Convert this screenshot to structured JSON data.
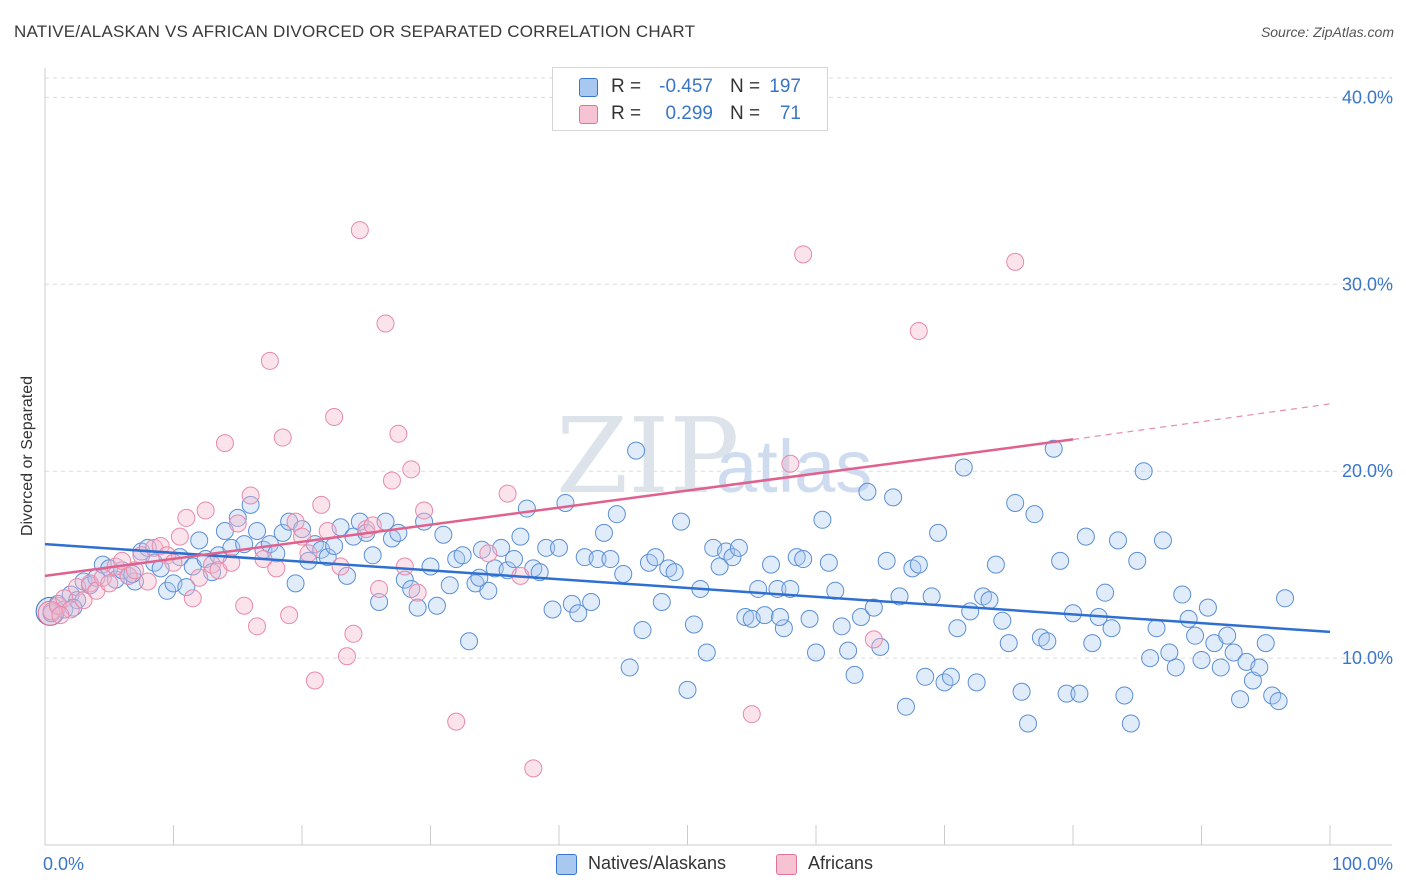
{
  "title": "NATIVE/ALASKAN VS AFRICAN DIVORCED OR SEPARATED CORRELATION CHART",
  "source": "Source: ZipAtlas.com",
  "watermark": {
    "zip": "ZIP",
    "atlas": "atlas"
  },
  "legend": {
    "rows": [
      {
        "r_label": "R =",
        "r_value": "-0.457",
        "n_label": "N =",
        "n_value": "197"
      },
      {
        "r_label": "R =",
        "r_value": "0.299",
        "n_label": "N =",
        "n_value": "71"
      }
    ]
  },
  "bottom_legend": {
    "natives": "Natives/Alaskans",
    "africans": "Africans"
  },
  "chart_data": {
    "type": "scatter",
    "title": "NATIVE/ALASKAN VS AFRICAN DIVORCED OR SEPARATED CORRELATION CHART",
    "xlabel": "",
    "ylabel": "Divorced or Separated",
    "xlim": [
      0,
      100
    ],
    "ylim": [
      0,
      42
    ],
    "x_tick_labels": [
      "0.0%",
      "100.0%"
    ],
    "y_ticks": [
      10,
      20,
      30,
      40
    ],
    "y_tick_labels": [
      "10.0%",
      "20.0%",
      "30.0%",
      "40.0%"
    ],
    "grid": true,
    "legend_position": "top-center",
    "colors": {
      "natives": "#3a76c8",
      "natives_fill": "#a9c8f0",
      "africans": "#e0739a",
      "africans_fill": "#f6b8cc"
    },
    "series": [
      {
        "name": "Natives/Alaskans",
        "r": -0.457,
        "n": 197,
        "trend": {
          "x": [
            0,
            100
          ],
          "y": [
            16.1,
            11.4
          ]
        },
        "points": [
          [
            0.5,
            12.4
          ],
          [
            1,
            12.9
          ],
          [
            1.5,
            12.6
          ],
          [
            2,
            13.4
          ],
          [
            2.5,
            13.1
          ],
          [
            3,
            14.1
          ],
          [
            3.5,
            13.9
          ],
          [
            4,
            14.3
          ],
          [
            4.5,
            15.0
          ],
          [
            5,
            14.8
          ],
          [
            5.5,
            14.2
          ],
          [
            6,
            14.7
          ],
          [
            6.5,
            14.4
          ],
          [
            7,
            14.1
          ],
          [
            7.5,
            15.7
          ],
          [
            8,
            15.9
          ],
          [
            8.5,
            15.1
          ],
          [
            9,
            14.8
          ],
          [
            9.5,
            13.6
          ],
          [
            10,
            14.0
          ],
          [
            10.5,
            15.4
          ],
          [
            11,
            13.8
          ],
          [
            11.5,
            14.9
          ],
          [
            12,
            16.3
          ],
          [
            12.5,
            15.3
          ],
          [
            13,
            14.6
          ],
          [
            13.5,
            15.5
          ],
          [
            14,
            16.8
          ],
          [
            14.5,
            15.9
          ],
          [
            15,
            17.5
          ],
          [
            15.5,
            16.1
          ],
          [
            16,
            18.2
          ],
          [
            16.5,
            16.8
          ],
          [
            17,
            15.8
          ],
          [
            17.5,
            16.1
          ],
          [
            18,
            15.6
          ],
          [
            18.5,
            16.7
          ],
          [
            19,
            17.3
          ],
          [
            19.5,
            14.0
          ],
          [
            20,
            16.9
          ],
          [
            20.5,
            15.2
          ],
          [
            21,
            16.1
          ],
          [
            21.5,
            15.8
          ],
          [
            22,
            15.4
          ],
          [
            22.5,
            16.0
          ],
          [
            23,
            17.0
          ],
          [
            23.5,
            14.4
          ],
          [
            24,
            16.5
          ],
          [
            24.5,
            17.3
          ],
          [
            25,
            16.7
          ],
          [
            25.5,
            15.5
          ],
          [
            26,
            13.0
          ],
          [
            26.5,
            17.3
          ],
          [
            27,
            16.4
          ],
          [
            27.5,
            16.7
          ],
          [
            28,
            14.2
          ],
          [
            28.5,
            13.7
          ],
          [
            29,
            12.7
          ],
          [
            29.5,
            17.3
          ],
          [
            30,
            14.9
          ],
          [
            30.5,
            12.8
          ],
          [
            31,
            16.6
          ],
          [
            31.5,
            13.9
          ],
          [
            32,
            15.3
          ],
          [
            32.5,
            15.5
          ],
          [
            33,
            10.9
          ],
          [
            33.5,
            14.0
          ],
          [
            34,
            15.8
          ],
          [
            34.5,
            13.6
          ],
          [
            35,
            14.8
          ],
          [
            35.5,
            15.9
          ],
          [
            36,
            14.7
          ],
          [
            36.5,
            15.3
          ],
          [
            37,
            16.5
          ],
          [
            37.5,
            18.0
          ],
          [
            38,
            14.8
          ],
          [
            38.5,
            14.6
          ],
          [
            39,
            15.9
          ],
          [
            39.5,
            12.6
          ],
          [
            40,
            15.9
          ],
          [
            40.5,
            18.3
          ],
          [
            41,
            12.9
          ],
          [
            41.5,
            12.4
          ],
          [
            42,
            15.4
          ],
          [
            42.5,
            13.0
          ],
          [
            43,
            15.3
          ],
          [
            43.5,
            16.7
          ],
          [
            44,
            15.3
          ],
          [
            44.5,
            17.7
          ],
          [
            45,
            14.5
          ],
          [
            45.5,
            9.5
          ],
          [
            46,
            21.1
          ],
          [
            46.5,
            11.5
          ],
          [
            47,
            15.1
          ],
          [
            47.5,
            15.4
          ],
          [
            48,
            13.0
          ],
          [
            48.5,
            14.8
          ],
          [
            49,
            14.6
          ],
          [
            49.5,
            17.3
          ],
          [
            50,
            8.3
          ],
          [
            50.5,
            11.8
          ],
          [
            51,
            13.7
          ],
          [
            51.5,
            10.3
          ],
          [
            52,
            15.9
          ],
          [
            52.5,
            14.9
          ],
          [
            53,
            15.7
          ],
          [
            53.5,
            15.4
          ],
          [
            54,
            15.9
          ],
          [
            54.5,
            12.2
          ],
          [
            55,
            12.1
          ],
          [
            55.5,
            13.7
          ],
          [
            56,
            12.3
          ],
          [
            56.5,
            15.0
          ],
          [
            57,
            13.7
          ],
          [
            57.5,
            11.6
          ],
          [
            58,
            13.7
          ],
          [
            58.5,
            15.4
          ],
          [
            59,
            15.3
          ],
          [
            59.5,
            12.1
          ],
          [
            60,
            10.3
          ],
          [
            60.5,
            17.4
          ],
          [
            61,
            15.1
          ],
          [
            61.5,
            13.6
          ],
          [
            62,
            11.7
          ],
          [
            62.5,
            10.4
          ],
          [
            63,
            9.1
          ],
          [
            63.5,
            12.2
          ],
          [
            64,
            18.9
          ],
          [
            64.5,
            12.7
          ],
          [
            65,
            10.6
          ],
          [
            65.5,
            15.2
          ],
          [
            66,
            18.6
          ],
          [
            66.5,
            13.3
          ],
          [
            67,
            7.4
          ],
          [
            67.5,
            14.8
          ],
          [
            68,
            15.0
          ],
          [
            68.5,
            9.0
          ],
          [
            69,
            13.3
          ],
          [
            69.5,
            16.7
          ],
          [
            70,
            8.7
          ],
          [
            70.5,
            9.0
          ],
          [
            71,
            11.6
          ],
          [
            71.5,
            20.2
          ],
          [
            72,
            12.5
          ],
          [
            72.5,
            8.7
          ],
          [
            73,
            13.3
          ],
          [
            73.5,
            13.1
          ],
          [
            74,
            15.0
          ],
          [
            74.5,
            12.0
          ],
          [
            75,
            10.8
          ],
          [
            75.5,
            18.3
          ],
          [
            76,
            8.2
          ],
          [
            76.5,
            6.5
          ],
          [
            77,
            17.7
          ],
          [
            77.5,
            11.1
          ],
          [
            78,
            10.9
          ],
          [
            78.5,
            21.2
          ],
          [
            79,
            15.2
          ],
          [
            79.5,
            8.1
          ],
          [
            80,
            12.4
          ],
          [
            80.5,
            8.1
          ],
          [
            81,
            16.5
          ],
          [
            81.5,
            10.8
          ],
          [
            82,
            12.2
          ],
          [
            82.5,
            13.5
          ],
          [
            83,
            11.6
          ],
          [
            83.5,
            16.3
          ],
          [
            84,
            8.0
          ],
          [
            84.5,
            6.5
          ],
          [
            85,
            15.2
          ],
          [
            85.5,
            20.0
          ],
          [
            86,
            10.0
          ],
          [
            86.5,
            11.6
          ],
          [
            87,
            16.3
          ],
          [
            87.5,
            10.3
          ],
          [
            88,
            9.5
          ],
          [
            88.5,
            13.4
          ],
          [
            89,
            12.1
          ],
          [
            89.5,
            11.2
          ],
          [
            90,
            9.9
          ],
          [
            90.5,
            12.7
          ],
          [
            91,
            10.8
          ],
          [
            91.5,
            9.5
          ],
          [
            92,
            11.2
          ],
          [
            92.5,
            10.3
          ],
          [
            93,
            7.8
          ],
          [
            93.5,
            9.8
          ],
          [
            94,
            8.8
          ],
          [
            94.5,
            9.5
          ],
          [
            95,
            10.8
          ],
          [
            95.5,
            8.0
          ],
          [
            96,
            7.7
          ],
          [
            96.5,
            13.2
          ],
          [
            2.2,
            12.7
          ],
          [
            6.8,
            14.5
          ],
          [
            33.8,
            14.3
          ],
          [
            57.2,
            12.2
          ]
        ]
      },
      {
        "name": "Africans",
        "r": 0.299,
        "n": 71,
        "trend": {
          "x": [
            0,
            80
          ],
          "y": [
            14.4,
            21.7
          ]
        },
        "trend_dashed": {
          "x": [
            80,
            100
          ],
          "y": [
            21.7,
            23.6
          ]
        },
        "points": [
          [
            0.5,
            12.5
          ],
          [
            1,
            12.8
          ],
          [
            1.5,
            13.2
          ],
          [
            2,
            12.6
          ],
          [
            2.5,
            13.8
          ],
          [
            3,
            13.1
          ],
          [
            3.5,
            14.0
          ],
          [
            4,
            13.6
          ],
          [
            4.5,
            14.3
          ],
          [
            5,
            14.0
          ],
          [
            5.5,
            14.9
          ],
          [
            6,
            15.2
          ],
          [
            6.5,
            14.4
          ],
          [
            7,
            14.7
          ],
          [
            7.5,
            15.5
          ],
          [
            8,
            14.1
          ],
          [
            8.5,
            15.9
          ],
          [
            9,
            16.0
          ],
          [
            9.5,
            15.5
          ],
          [
            10,
            15.1
          ],
          [
            10.5,
            16.5
          ],
          [
            11,
            17.5
          ],
          [
            11.5,
            13.2
          ],
          [
            12,
            14.3
          ],
          [
            12.5,
            17.9
          ],
          [
            13,
            15.0
          ],
          [
            13.5,
            14.7
          ],
          [
            14,
            21.5
          ],
          [
            14.5,
            15.1
          ],
          [
            15,
            17.2
          ],
          [
            15.5,
            12.8
          ],
          [
            16,
            18.7
          ],
          [
            16.5,
            11.7
          ],
          [
            17,
            15.3
          ],
          [
            17.5,
            25.9
          ],
          [
            18,
            14.8
          ],
          [
            18.5,
            21.8
          ],
          [
            19,
            12.3
          ],
          [
            19.5,
            17.3
          ],
          [
            20,
            16.5
          ],
          [
            20.5,
            15.6
          ],
          [
            21,
            8.8
          ],
          [
            21.5,
            18.2
          ],
          [
            22,
            16.8
          ],
          [
            22.5,
            22.9
          ],
          [
            23,
            14.9
          ],
          [
            23.5,
            10.1
          ],
          [
            24,
            11.3
          ],
          [
            24.5,
            32.9
          ],
          [
            25,
            16.9
          ],
          [
            25.5,
            17.1
          ],
          [
            26,
            13.7
          ],
          [
            26.5,
            27.9
          ],
          [
            27,
            19.5
          ],
          [
            27.5,
            22.0
          ],
          [
            28,
            14.9
          ],
          [
            28.5,
            20.1
          ],
          [
            29,
            13.5
          ],
          [
            29.5,
            17.9
          ],
          [
            32,
            6.6
          ],
          [
            34.5,
            15.6
          ],
          [
            36,
            18.8
          ],
          [
            37,
            14.4
          ],
          [
            38,
            4.1
          ],
          [
            55,
            7.0
          ],
          [
            58,
            20.4
          ],
          [
            59,
            31.6
          ],
          [
            64.5,
            11.0
          ],
          [
            68,
            27.5
          ],
          [
            75.5,
            31.2
          ],
          [
            1.2,
            12.3
          ]
        ]
      }
    ]
  }
}
